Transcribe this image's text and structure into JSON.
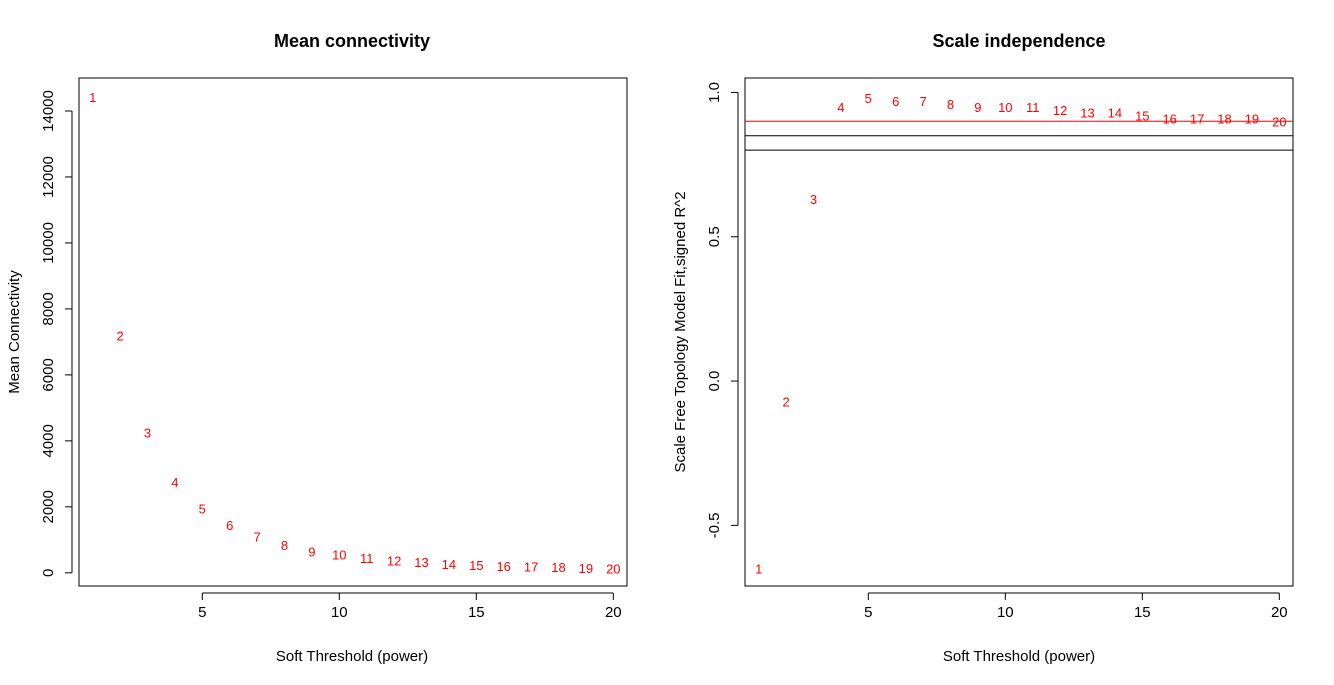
{
  "chart_data": [
    {
      "type": "scatter",
      "title": "Mean connectivity",
      "xlabel": "Soft Threshold (power)",
      "ylabel": "Mean Connectivity",
      "x_ticks": [
        5,
        10,
        15,
        20
      ],
      "y_ticks": [
        0,
        2000,
        4000,
        6000,
        8000,
        10000,
        12000,
        14000
      ],
      "xlim": [
        0.5,
        20.5
      ],
      "ylim": [
        -400,
        15000
      ],
      "point_color": "#ff0000",
      "x": [
        1,
        2,
        3,
        4,
        5,
        6,
        7,
        8,
        9,
        10,
        11,
        12,
        13,
        14,
        15,
        16,
        17,
        18,
        19,
        20
      ],
      "y": [
        14420,
        7200,
        4250,
        2750,
        1950,
        1450,
        1100,
        850,
        650,
        550,
        450,
        380,
        320,
        270,
        240,
        210,
        190,
        170,
        150,
        130
      ],
      "labels": [
        "1",
        "2",
        "3",
        "4",
        "5",
        "6",
        "7",
        "8",
        "9",
        "10",
        "11",
        "12",
        "13",
        "14",
        "15",
        "16",
        "17",
        "18",
        "19",
        "20"
      ],
      "hlines": []
    },
    {
      "type": "scatter",
      "title": "Scale independence",
      "xlabel": "Soft Threshold (power)",
      "ylabel": "Scale Free Topology Model Fit,signed R^2",
      "x_ticks": [
        5,
        10,
        15,
        20
      ],
      "y_ticks": [
        -0.5,
        0.0,
        0.5,
        1.0
      ],
      "y_tick_labels": [
        "-0.5",
        "0.0",
        "0.5",
        "1.0"
      ],
      "xlim": [
        0.5,
        20.5
      ],
      "ylim": [
        -0.71,
        1.05
      ],
      "point_color": "#ff0000",
      "x": [
        1,
        2,
        3,
        4,
        5,
        6,
        7,
        8,
        9,
        10,
        11,
        12,
        13,
        14,
        15,
        16,
        17,
        18,
        19,
        20
      ],
      "y": [
        -0.65,
        -0.07,
        0.63,
        0.95,
        0.98,
        0.97,
        0.97,
        0.96,
        0.95,
        0.95,
        0.95,
        0.94,
        0.93,
        0.93,
        0.92,
        0.91,
        0.91,
        0.91,
        0.91,
        0.9
      ],
      "labels": [
        "1",
        "2",
        "3",
        "4",
        "5",
        "6",
        "7",
        "8",
        "9",
        "10",
        "11",
        "12",
        "13",
        "14",
        "15",
        "16",
        "17",
        "18",
        "19",
        "20"
      ],
      "hlines": [
        {
          "y": 0.9,
          "color": "#ff0000"
        },
        {
          "y": 0.85,
          "color": "#000000"
        },
        {
          "y": 0.8,
          "color": "#000000"
        }
      ]
    }
  ]
}
